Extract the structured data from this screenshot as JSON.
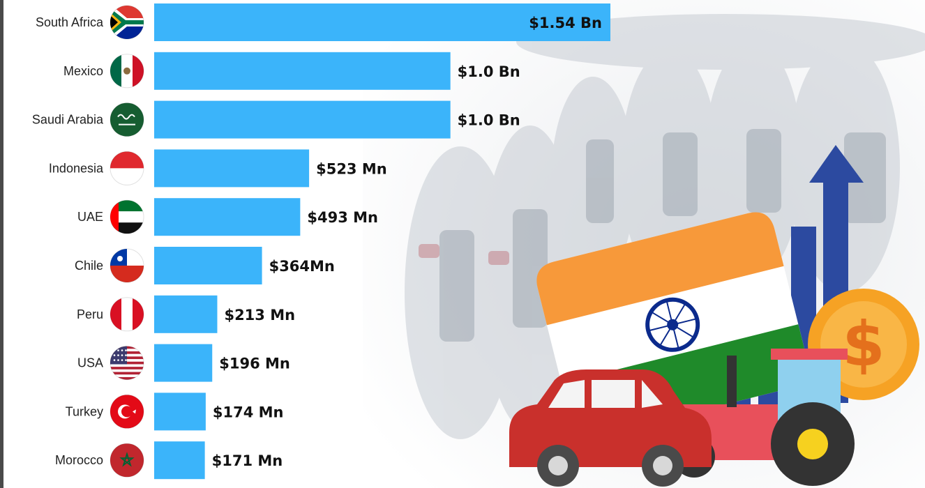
{
  "chart_data": {
    "type": "bar",
    "orientation": "horizontal",
    "title": "",
    "xlabel": "",
    "ylabel": "",
    "grid": false,
    "xlim": [
      0,
      1.54
    ],
    "unit": "USD billions",
    "categories": [
      "South Africa",
      "Mexico",
      "Saudi Arabia",
      "Indonesia",
      "UAE",
      "Chile",
      "Peru",
      "USA",
      "Turkey",
      "Morocco"
    ],
    "values": [
      1.54,
      1.0,
      1.0,
      0.523,
      0.493,
      0.364,
      0.213,
      0.196,
      0.174,
      0.171
    ],
    "value_labels": [
      "$1.54 Bn",
      "$1.0 Bn",
      "$1.0 Bn",
      "$523 Mn",
      "$493 Mn",
      "$364Mn",
      "$213 Mn",
      "$196 Mn",
      "$174 Mn",
      "$171 Mn"
    ],
    "flag_icons": [
      "south-africa-flag-icon",
      "mexico-flag-icon",
      "saudi-arabia-flag-icon",
      "indonesia-flag-icon",
      "uae-flag-icon",
      "chile-flag-icon",
      "peru-flag-icon",
      "usa-flag-icon",
      "turkey-flag-icon",
      "morocco-flag-icon"
    ],
    "bar_color": "#3bb4fa"
  },
  "illustration": {
    "icons": [
      "india-flag-icon",
      "car-icon",
      "tractor-icon",
      "growth-bars-icon",
      "up-arrow-icon",
      "dollar-coin-icon"
    ],
    "colors": {
      "saffron": "#f7993a",
      "green": "#1f8a2a",
      "navy": "#0b2a8c",
      "car": "#c9302c",
      "bars": "#2c4aa0",
      "coin": "#f6a224"
    }
  }
}
